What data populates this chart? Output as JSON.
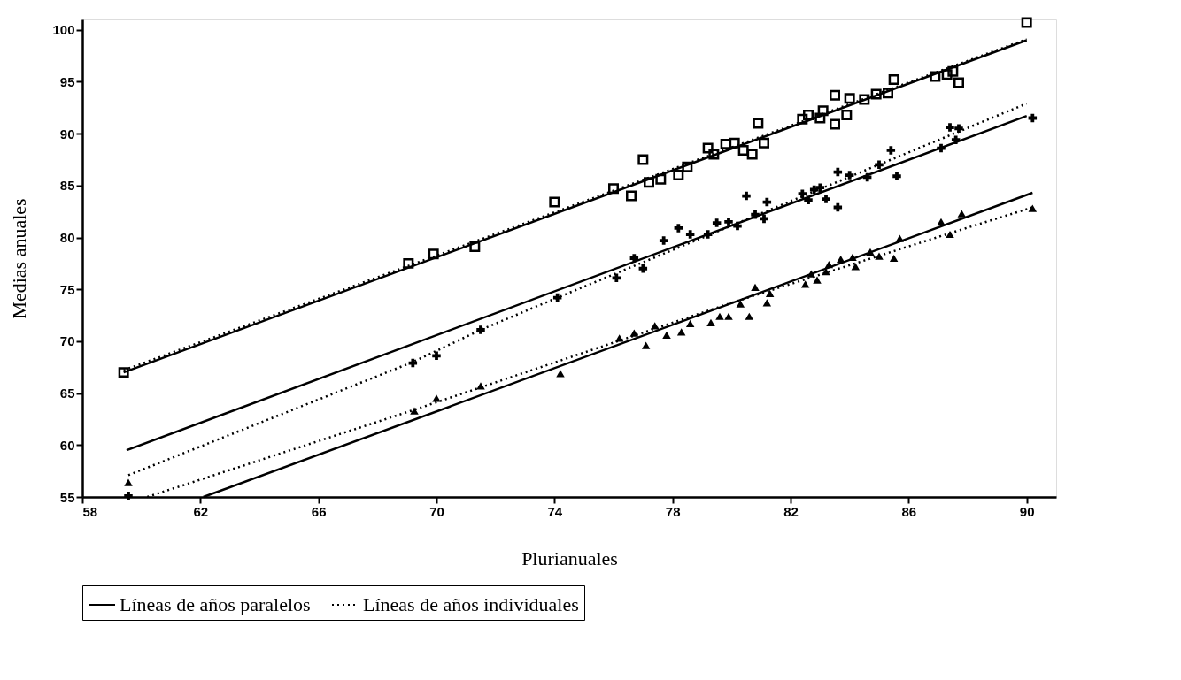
{
  "chart_data": {
    "type": "scatter",
    "xlabel": "Plurianuales",
    "ylabel": "Medias anuales",
    "xlim": [
      58,
      91
    ],
    "ylim": [
      55,
      101
    ],
    "xticks": [
      58,
      62,
      66,
      70,
      74,
      78,
      82,
      86,
      90
    ],
    "yticks": [
      55,
      60,
      65,
      70,
      75,
      80,
      85,
      90,
      95,
      100
    ],
    "grid": false,
    "legend": "bottom",
    "series": [
      {
        "marker": "square",
        "color": "#000000",
        "x": [
          59.4,
          69.05,
          69.9,
          71.3,
          74.0,
          76.0,
          76.6,
          77.0,
          77.2,
          77.6,
          78.2,
          78.5,
          79.2,
          79.4,
          79.8,
          80.1,
          80.4,
          80.7,
          80.9,
          81.1,
          82.4,
          82.6,
          83.0,
          83.1,
          83.5,
          83.5,
          83.9,
          84.0,
          84.5,
          84.9,
          85.3,
          85.5,
          86.9,
          87.3,
          87.5,
          87.7,
          90.0
        ],
        "values": [
          67.0,
          77.5,
          78.4,
          79.1,
          83.4,
          84.7,
          84.0,
          87.5,
          85.3,
          85.6,
          86.0,
          86.8,
          88.6,
          88.0,
          89.0,
          89.1,
          88.4,
          88.0,
          91.0,
          89.1,
          91.4,
          91.8,
          91.5,
          92.2,
          93.7,
          90.9,
          91.8,
          93.4,
          93.3,
          93.8,
          93.9,
          95.2,
          95.5,
          95.7,
          96.0,
          94.9,
          100.7
        ]
      },
      {
        "marker": "cross",
        "color": "#000000",
        "x": [
          59.56,
          69.2,
          70.0,
          71.5,
          74.1,
          76.1,
          76.7,
          77.0,
          77.7,
          78.2,
          78.6,
          79.2,
          79.5,
          79.9,
          80.2,
          80.5,
          80.8,
          81.1,
          81.2,
          82.4,
          82.6,
          82.8,
          83.0,
          83.2,
          83.6,
          83.6,
          84.0,
          84.6,
          85.0,
          85.4,
          85.6,
          87.1,
          87.4,
          87.6,
          87.7,
          90.2
        ],
        "values": [
          55.1,
          67.9,
          68.6,
          71.1,
          74.2,
          76.1,
          78.0,
          77.0,
          79.7,
          80.9,
          80.3,
          80.3,
          81.4,
          81.5,
          81.1,
          84.0,
          82.2,
          81.8,
          83.4,
          84.2,
          83.6,
          84.6,
          84.8,
          83.7,
          82.9,
          86.3,
          86.0,
          85.8,
          87.0,
          88.4,
          85.9,
          88.6,
          90.6,
          89.4,
          90.5,
          91.5
        ]
      },
      {
        "marker": "triangle",
        "color": "#000000",
        "x": [
          59.56,
          69.25,
          70.0,
          71.5,
          74.2,
          76.2,
          76.7,
          77.1,
          77.4,
          77.8,
          78.3,
          78.6,
          79.3,
          79.6,
          79.9,
          80.3,
          80.6,
          80.8,
          81.2,
          81.3,
          82.5,
          82.7,
          82.9,
          83.2,
          83.3,
          83.7,
          84.1,
          84.2,
          84.7,
          85.0,
          85.5,
          85.7,
          87.1,
          87.4,
          87.8,
          90.2
        ],
        "values": [
          56.4,
          63.3,
          64.5,
          65.7,
          66.9,
          70.3,
          70.8,
          69.6,
          71.5,
          70.6,
          70.9,
          71.7,
          71.8,
          72.4,
          72.4,
          73.6,
          72.4,
          75.2,
          73.7,
          74.6,
          75.5,
          76.5,
          75.9,
          76.7,
          77.4,
          77.9,
          78.1,
          77.2,
          78.6,
          78.2,
          78.0,
          79.9,
          81.5,
          80.3,
          82.3,
          82.8
        ]
      },
      {
        "type": "line",
        "name": "Líneas de años paralelos",
        "line_style": "solid",
        "color": "#000000",
        "x": [
          59.4,
          90.0,
          null,
          59.5,
          90.0,
          null,
          62.1,
          90.2
        ],
        "values": [
          67.0,
          99.0,
          null,
          59.5,
          91.7,
          null,
          55.0,
          84.3
        ]
      },
      {
        "type": "line",
        "name": "Líneas de años individuales",
        "line_style": "dotted",
        "color": "#000000",
        "x": [
          59.4,
          90.0,
          null,
          59.56,
          69.2,
          71.5,
          74.1,
          90.0,
          null,
          60.2,
          69.25,
          80.0,
          87.5,
          90.2
        ],
        "values": [
          67.2,
          99.1,
          null,
          57.1,
          68.0,
          71.1,
          74.2,
          92.9,
          null,
          55.0,
          63.4,
          73.7,
          80.5,
          82.9
        ]
      }
    ]
  }
}
